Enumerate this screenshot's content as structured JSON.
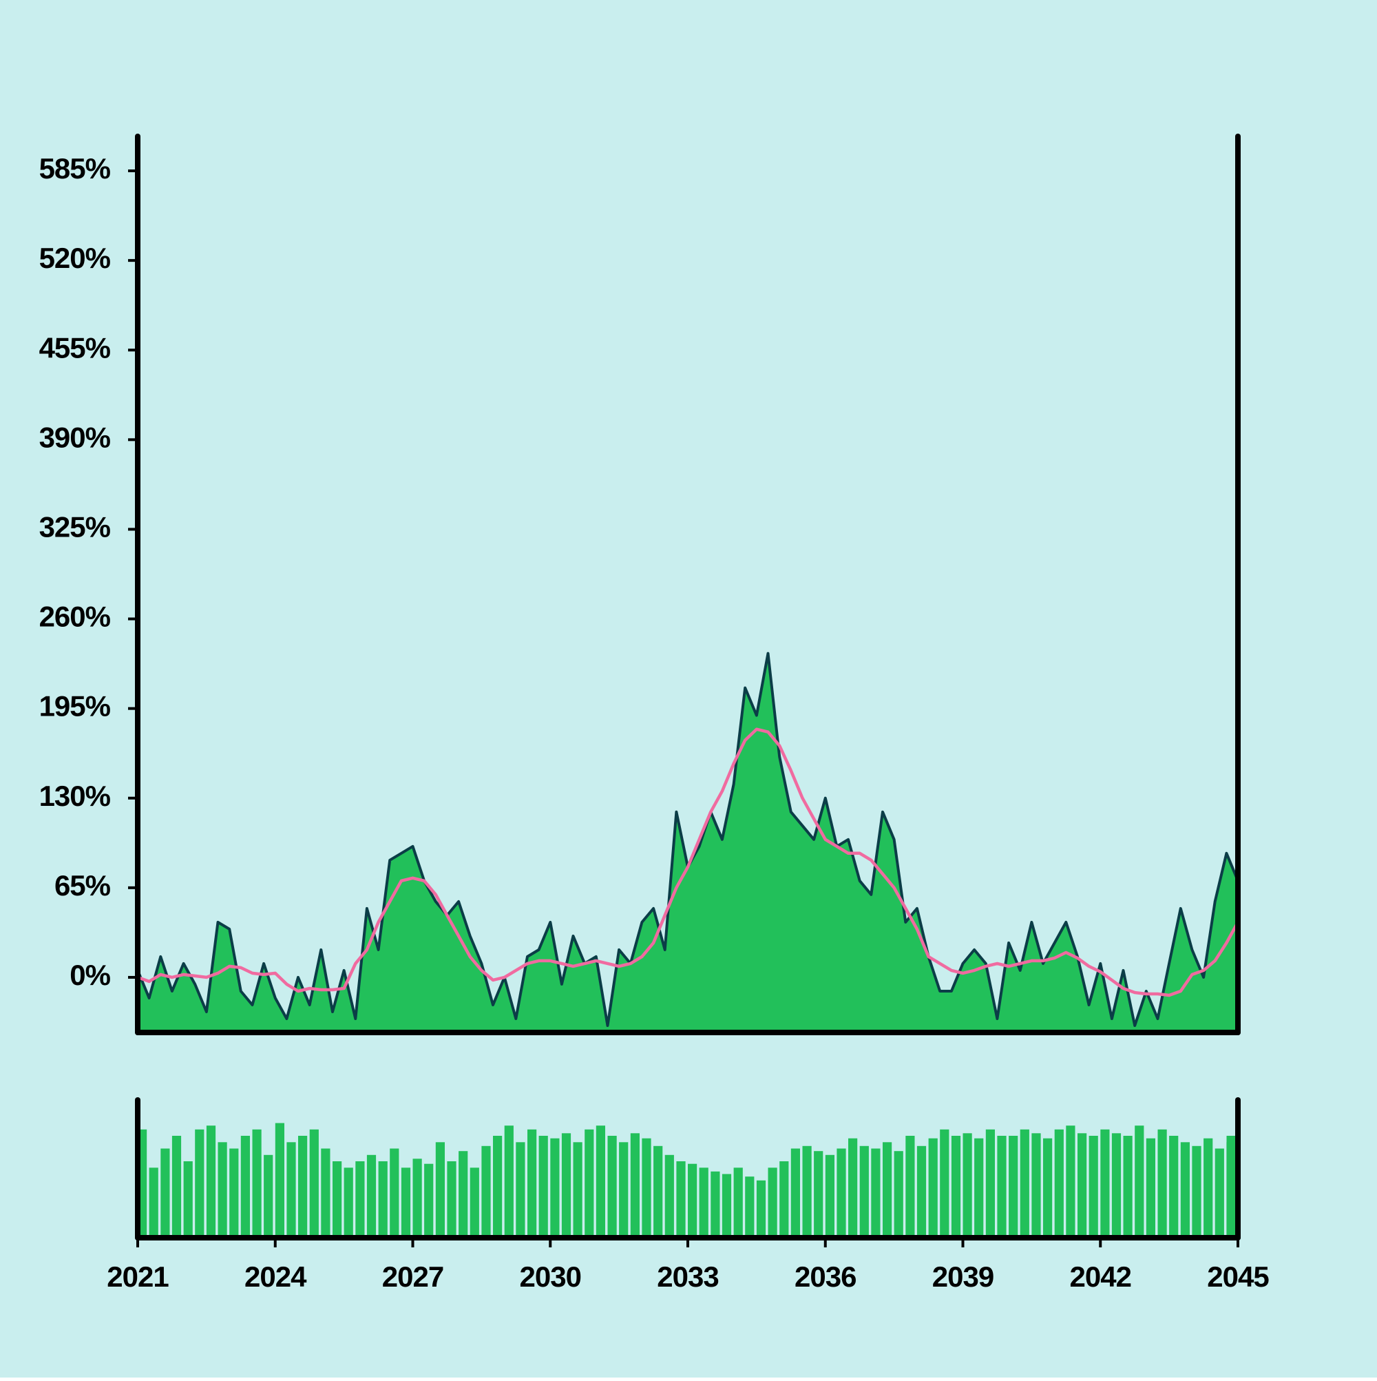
{
  "chart_data": {
    "type": "area",
    "x": [
      2021,
      2021.25,
      2021.5,
      2021.75,
      2022,
      2022.25,
      2022.5,
      2022.75,
      2023,
      2023.25,
      2023.5,
      2023.75,
      2024,
      2024.25,
      2024.5,
      2024.75,
      2025,
      2025.25,
      2025.5,
      2025.75,
      2026,
      2026.25,
      2026.5,
      2026.75,
      2027,
      2027.25,
      2027.5,
      2027.75,
      2028,
      2028.25,
      2028.5,
      2028.75,
      2029,
      2029.25,
      2029.5,
      2029.75,
      2030,
      2030.25,
      2030.5,
      2030.75,
      2031,
      2031.25,
      2031.5,
      2031.75,
      2032,
      2032.25,
      2032.5,
      2032.75,
      2033,
      2033.25,
      2033.5,
      2033.75,
      2034,
      2034.25,
      2034.5,
      2034.75,
      2035,
      2035.25,
      2035.5,
      2035.75,
      2036,
      2036.25,
      2036.5,
      2036.75,
      2037,
      2037.25,
      2037.5,
      2037.75,
      2038,
      2038.25,
      2038.5,
      2038.75,
      2039,
      2039.25,
      2039.5,
      2039.75,
      2040,
      2040.25,
      2040.5,
      2040.75,
      2041,
      2041.25,
      2041.5,
      2041.75,
      2042,
      2042.25,
      2042.5,
      2042.75,
      2043,
      2043.25,
      2043.5,
      2043.75,
      2044,
      2044.25,
      2044.5,
      2044.75,
      2045
    ],
    "series": [
      {
        "color": "#22c05a",
        "line_color": "#0b3d47",
        "values": [
          5,
          -15,
          15,
          -10,
          10,
          -5,
          -25,
          40,
          35,
          -10,
          -20,
          10,
          -15,
          -30,
          0,
          -20,
          20,
          -25,
          5,
          -30,
          50,
          20,
          85,
          90,
          95,
          70,
          55,
          45,
          55,
          30,
          10,
          -20,
          0,
          -30,
          15,
          20,
          40,
          -5,
          30,
          10,
          15,
          -35,
          20,
          10,
          40,
          50,
          20,
          120,
          80,
          95,
          120,
          100,
          140,
          210,
          190,
          235,
          160,
          120,
          110,
          100,
          130,
          95,
          100,
          70,
          60,
          120,
          100,
          40,
          50,
          15,
          -10,
          -10,
          10,
          20,
          10,
          -30,
          25,
          5,
          40,
          10,
          25,
          40,
          15,
          -20,
          10,
          -30,
          5,
          -35,
          -10,
          -30,
          10,
          50,
          20,
          0,
          55,
          90,
          70
        ]
      },
      {
        "color": "#f06ba0",
        "values": [
          0,
          -3,
          2,
          0,
          2,
          1,
          0,
          3,
          8,
          7,
          3,
          2,
          3,
          -5,
          -10,
          -8,
          -9,
          -9,
          -8,
          10,
          20,
          40,
          55,
          70,
          72,
          70,
          60,
          45,
          30,
          15,
          5,
          -2,
          0,
          5,
          10,
          12,
          12,
          10,
          8,
          10,
          12,
          10,
          8,
          10,
          15,
          25,
          45,
          65,
          80,
          100,
          120,
          135,
          155,
          172,
          180,
          178,
          168,
          150,
          130,
          115,
          100,
          95,
          90,
          90,
          85,
          75,
          65,
          50,
          35,
          15,
          10,
          5,
          3,
          5,
          8,
          10,
          8,
          10,
          12,
          12,
          14,
          18,
          14,
          8,
          4,
          -2,
          -8,
          -11,
          -12,
          -12,
          -13,
          -10,
          2,
          5,
          12,
          25,
          40
        ]
      }
    ],
    "volume": {
      "color": "#22c05a",
      "ylim": [
        0,
        100
      ],
      "values": [
        85,
        55,
        70,
        80,
        60,
        85,
        88,
        75,
        70,
        80,
        85,
        65,
        90,
        75,
        80,
        85,
        70,
        60,
        55,
        60,
        65,
        60,
        70,
        55,
        62,
        58,
        75,
        60,
        68,
        55,
        72,
        80,
        88,
        75,
        85,
        80,
        78,
        82,
        75,
        85,
        88,
        80,
        75,
        82,
        78,
        72,
        65,
        60,
        58,
        55,
        52,
        50,
        55,
        48,
        45,
        55,
        60,
        70,
        72,
        68,
        65,
        70,
        78,
        72,
        70,
        75,
        68,
        80,
        72,
        78,
        85,
        80,
        82,
        78,
        85,
        80,
        80,
        85,
        82,
        78,
        85,
        88,
        82,
        80,
        85,
        82,
        80,
        88,
        78,
        85,
        80,
        75,
        72,
        78,
        70,
        75,
        80
      ]
    },
    "xlim": [
      2021,
      2045
    ],
    "xticks": [
      2021,
      2024,
      2027,
      2030,
      2033,
      2036,
      2039,
      2042,
      2045
    ],
    "ylim": [
      -40,
      610
    ],
    "yticks": [
      {
        "value": 0,
        "label": "0%"
      },
      {
        "value": 65,
        "label": "65%"
      },
      {
        "value": 130,
        "label": "130%"
      },
      {
        "value": 195,
        "label": "195%"
      },
      {
        "value": 260,
        "label": "260%"
      },
      {
        "value": 325,
        "label": "325%"
      },
      {
        "value": 390,
        "label": "390%"
      },
      {
        "value": 455,
        "label": "455%"
      },
      {
        "value": 520,
        "label": "520%"
      },
      {
        "value": 585,
        "label": "585%"
      }
    ],
    "background": "#c9eeee"
  }
}
